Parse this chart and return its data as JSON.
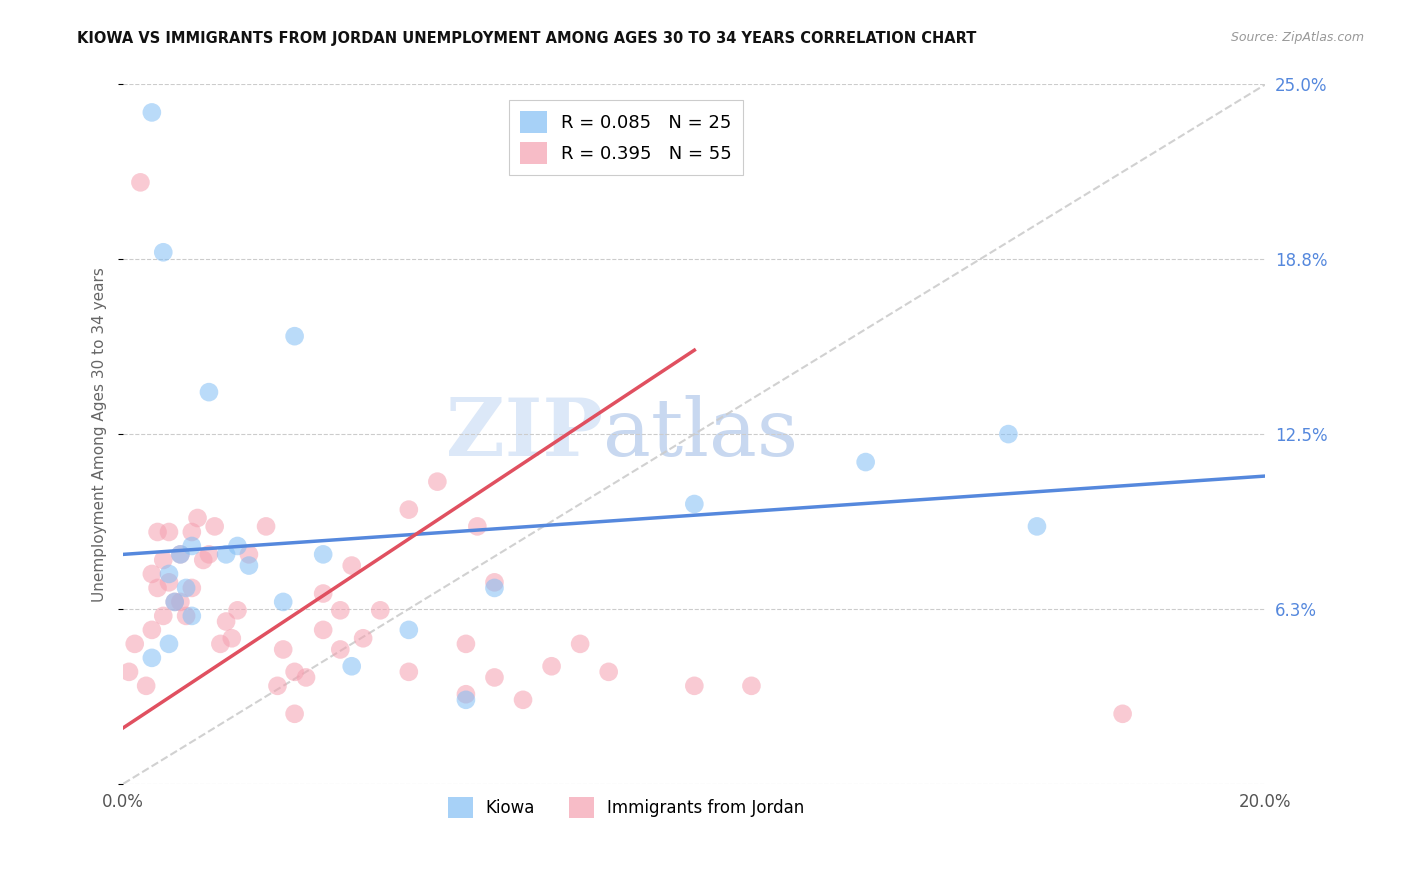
{
  "title": "KIOWA VS IMMIGRANTS FROM JORDAN UNEMPLOYMENT AMONG AGES 30 TO 34 YEARS CORRELATION CHART",
  "source": "Source: ZipAtlas.com",
  "ylabel": "Unemployment Among Ages 30 to 34 years",
  "xlim": [
    0.0,
    0.2
  ],
  "ylim": [
    0.0,
    0.25
  ],
  "legend_blue_r": "R = 0.085",
  "legend_blue_n": "N = 25",
  "legend_pink_r": "R = 0.395",
  "legend_pink_n": "N = 55",
  "legend_label_blue": "Kiowa",
  "legend_label_pink": "Immigrants from Jordan",
  "watermark_zip": "ZIP",
  "watermark_atlas": "atlas",
  "color_blue": "#82bef5",
  "color_pink": "#f5a0b0",
  "color_blue_line": "#5588dd",
  "color_pink_line": "#e05060",
  "color_diag": "#cccccc",
  "kiowa_x": [
    0.005,
    0.007,
    0.008,
    0.009,
    0.01,
    0.011,
    0.012,
    0.015,
    0.018,
    0.02,
    0.022,
    0.028,
    0.03,
    0.035,
    0.04,
    0.05,
    0.06,
    0.065,
    0.1,
    0.13,
    0.155,
    0.16,
    0.005,
    0.008,
    0.012
  ],
  "kiowa_y": [
    0.24,
    0.19,
    0.075,
    0.065,
    0.082,
    0.07,
    0.085,
    0.14,
    0.082,
    0.085,
    0.078,
    0.065,
    0.16,
    0.082,
    0.042,
    0.055,
    0.03,
    0.07,
    0.1,
    0.115,
    0.125,
    0.092,
    0.045,
    0.05,
    0.06
  ],
  "jordan_x": [
    0.001,
    0.002,
    0.003,
    0.004,
    0.005,
    0.005,
    0.006,
    0.006,
    0.007,
    0.007,
    0.008,
    0.008,
    0.009,
    0.01,
    0.01,
    0.011,
    0.012,
    0.012,
    0.013,
    0.014,
    0.015,
    0.016,
    0.017,
    0.018,
    0.019,
    0.02,
    0.022,
    0.025,
    0.027,
    0.03,
    0.032,
    0.035,
    0.038,
    0.04,
    0.042,
    0.045,
    0.05,
    0.055,
    0.06,
    0.062,
    0.065,
    0.028,
    0.03,
    0.035,
    0.038,
    0.05,
    0.06,
    0.065,
    0.07,
    0.075,
    0.08,
    0.085,
    0.1,
    0.11,
    0.175
  ],
  "jordan_y": [
    0.04,
    0.05,
    0.215,
    0.035,
    0.075,
    0.055,
    0.07,
    0.09,
    0.08,
    0.06,
    0.09,
    0.072,
    0.065,
    0.065,
    0.082,
    0.06,
    0.09,
    0.07,
    0.095,
    0.08,
    0.082,
    0.092,
    0.05,
    0.058,
    0.052,
    0.062,
    0.082,
    0.092,
    0.035,
    0.025,
    0.038,
    0.068,
    0.062,
    0.078,
    0.052,
    0.062,
    0.098,
    0.108,
    0.032,
    0.092,
    0.072,
    0.048,
    0.04,
    0.055,
    0.048,
    0.04,
    0.05,
    0.038,
    0.03,
    0.042,
    0.05,
    0.04,
    0.035,
    0.035,
    0.025
  ],
  "blue_line_x": [
    0.0,
    0.2
  ],
  "blue_line_y": [
    0.082,
    0.11
  ],
  "pink_line_x": [
    0.0,
    0.1
  ],
  "pink_line_y": [
    0.02,
    0.155
  ]
}
